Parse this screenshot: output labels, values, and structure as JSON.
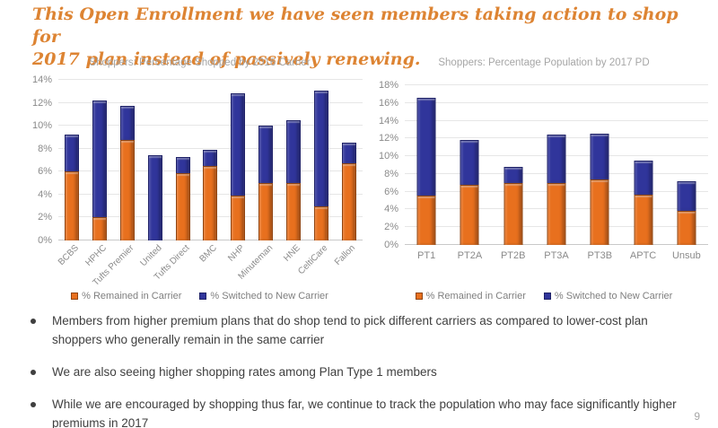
{
  "slide": {
    "title_line1": "This Open Enrollment we have seen members taking action to shop for",
    "title_line2": "2017 plan instead of passively renewing.",
    "page_number": "9"
  },
  "colors": {
    "title_orange": "#DD8433",
    "remained_fill": "#E8701E",
    "remained_border": "#8F4410",
    "switched_fill": "#30359B",
    "switched_border": "#1E2167",
    "gridline": "#E6E6E6",
    "axis_text": "#8A8A8A",
    "chart_title_text": "#A6A6A6",
    "legend_text": "#7F7F7F",
    "bullet_text": "#3F3F3F"
  },
  "chart_data": [
    {
      "type": "bar",
      "stacked": true,
      "title": "Shoppers: Percentage Shopped by 2016 Carrier",
      "categories": [
        "BCBS",
        "HPHC",
        "Tufts Premier",
        "United",
        "Tufts Direct",
        "BMC",
        "NHP",
        "Minuteman",
        "HNE",
        "CeltiCare",
        "Fallon"
      ],
      "series": [
        {
          "name": "% Remained in Carrier",
          "color": "#E8701E",
          "border": "#8F4410",
          "values": [
            6.0,
            2.0,
            8.8,
            0.0,
            5.9,
            6.5,
            3.9,
            5.0,
            5.0,
            3.0,
            6.7
          ]
        },
        {
          "name": "% Switched to New Carrier",
          "color": "#30359B",
          "border": "#1E2167",
          "values": [
            3.2,
            10.2,
            2.9,
            7.4,
            1.4,
            1.4,
            8.9,
            5.0,
            5.5,
            10.1,
            1.8
          ]
        }
      ],
      "totals": [
        9.2,
        12.2,
        11.7,
        7.4,
        7.3,
        7.9,
        12.8,
        10.0,
        10.5,
        13.1,
        8.5
      ],
      "xlabel": "",
      "ylabel": "",
      "ylim": [
        0,
        14
      ],
      "ytick": 2,
      "ytick_suffix": "%",
      "grid": true,
      "legend_position": "bottom",
      "xlabel_rotation": -45
    },
    {
      "type": "bar",
      "stacked": true,
      "title": "Shoppers: Percentage Population by 2017 PD",
      "categories": [
        "PT1",
        "PT2A",
        "PT2B",
        "PT3A",
        "PT3B",
        "APTC",
        "Unsub"
      ],
      "series": [
        {
          "name": "% Remained in Carrier",
          "color": "#E8701E",
          "border": "#8F4410",
          "values": [
            5.6,
            6.8,
            7.0,
            7.0,
            7.4,
            5.7,
            3.8
          ]
        },
        {
          "name": "% Switched to New Carrier",
          "color": "#30359B",
          "border": "#1E2167",
          "values": [
            11.0,
            5.0,
            1.8,
            5.4,
            5.1,
            3.8,
            3.4
          ]
        }
      ],
      "totals": [
        16.6,
        11.8,
        8.8,
        12.4,
        12.5,
        9.5,
        7.2
      ],
      "xlabel": "",
      "ylabel": "",
      "ylim": [
        0,
        18
      ],
      "ytick": 2,
      "ytick_suffix": "%",
      "grid": true,
      "legend_position": "bottom",
      "xlabel_rotation": 0
    }
  ],
  "bullets": [
    "Members from higher premium plans that do shop tend to pick different carriers as compared to lower-cost plan shoppers who generally remain in the same carrier",
    "We are also seeing higher shopping rates among Plan Type 1 members",
    "While we are encouraged by shopping thus far, we continue to track the population who may face significantly higher premiums in 2017"
  ]
}
